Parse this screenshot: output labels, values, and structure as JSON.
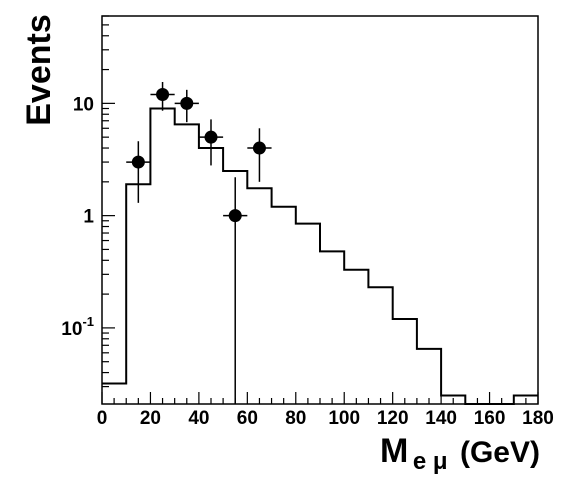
{
  "chart_data": {
    "type": "line",
    "ylabel": "Events",
    "xlabel_main": "M",
    "xlabel_sub": "e μ",
    "xlabel_unit": "(GeV)",
    "xlim": [
      0,
      180
    ],
    "ylim": [
      0.021,
      60
    ],
    "yscale": "log",
    "grid": false,
    "x_ticks": [
      0,
      20,
      40,
      60,
      80,
      100,
      120,
      140,
      160,
      180
    ],
    "y_ticks": [
      {
        "value": 10,
        "label": "10"
      },
      {
        "value": 1,
        "label": "1"
      },
      {
        "value": 0.1,
        "label": "10",
        "exp": "-1"
      }
    ],
    "series": [
      {
        "kind": "histogram",
        "edges": [
          0,
          10,
          20,
          30,
          40,
          50,
          60,
          70,
          80,
          90,
          100,
          110,
          120,
          130,
          140,
          150,
          160,
          170,
          180
        ],
        "values": [
          0.032,
          1.9,
          9.0,
          6.5,
          4.0,
          2.5,
          1.75,
          1.2,
          0.85,
          0.48,
          0.33,
          0.23,
          0.12,
          0.065,
          0.025,
          0.021,
          0.021,
          0.025
        ]
      },
      {
        "kind": "points",
        "points": [
          {
            "x": 15,
            "y": 3,
            "ylo": 1.3,
            "yhi": 4.6
          },
          {
            "x": 25,
            "y": 12,
            "ylo": 8.6,
            "yhi": 15.5
          },
          {
            "x": 35,
            "y": 10,
            "ylo": 6.8,
            "yhi": 13.2
          },
          {
            "x": 45,
            "y": 5,
            "ylo": 2.8,
            "yhi": 7.2
          },
          {
            "x": 55,
            "y": 1,
            "ylo": 0.01,
            "yhi": 2.2
          },
          {
            "x": 65,
            "y": 4,
            "ylo": 2.0,
            "yhi": 6.0
          }
        ]
      }
    ]
  }
}
